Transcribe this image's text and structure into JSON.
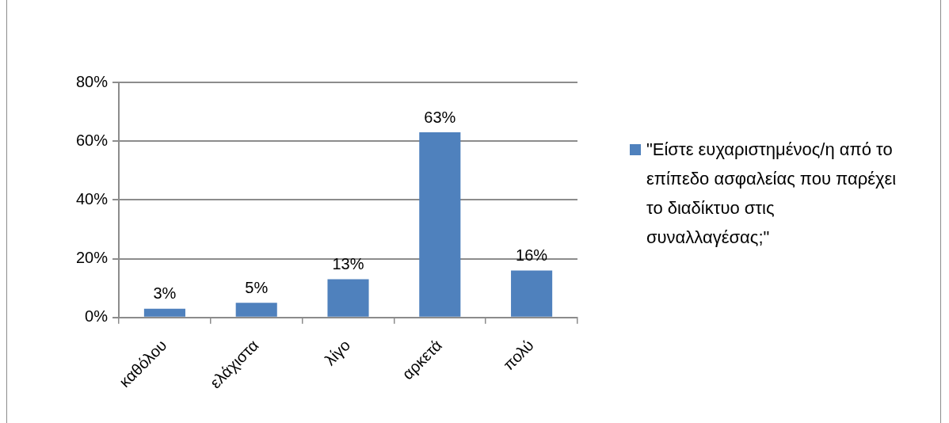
{
  "chart_data": {
    "type": "bar",
    "categories": [
      "καθόλου",
      "ελάχιστα",
      "λίγο",
      "αρκετά",
      "πολύ"
    ],
    "series": [
      {
        "name": "\"Είστε ευχαριστημένος/η από το επίπεδο ασφαλείας που παρέχει το διαδίκτυο στις συναλλαγέσας;\"",
        "color": "#4f81bd",
        "values": [
          3,
          5,
          13,
          63,
          16
        ],
        "value_labels": [
          "3%",
          "5%",
          "13%",
          "63%",
          "16%"
        ]
      }
    ],
    "ylim": [
      0,
      80
    ],
    "yticks": [
      {
        "value": 0,
        "label": "0%"
      },
      {
        "value": 20,
        "label": "20%"
      },
      {
        "value": 40,
        "label": "40%"
      },
      {
        "value": 60,
        "label": "60%"
      },
      {
        "value": 80,
        "label": "80%"
      }
    ],
    "grid": "y",
    "legend": "right"
  }
}
